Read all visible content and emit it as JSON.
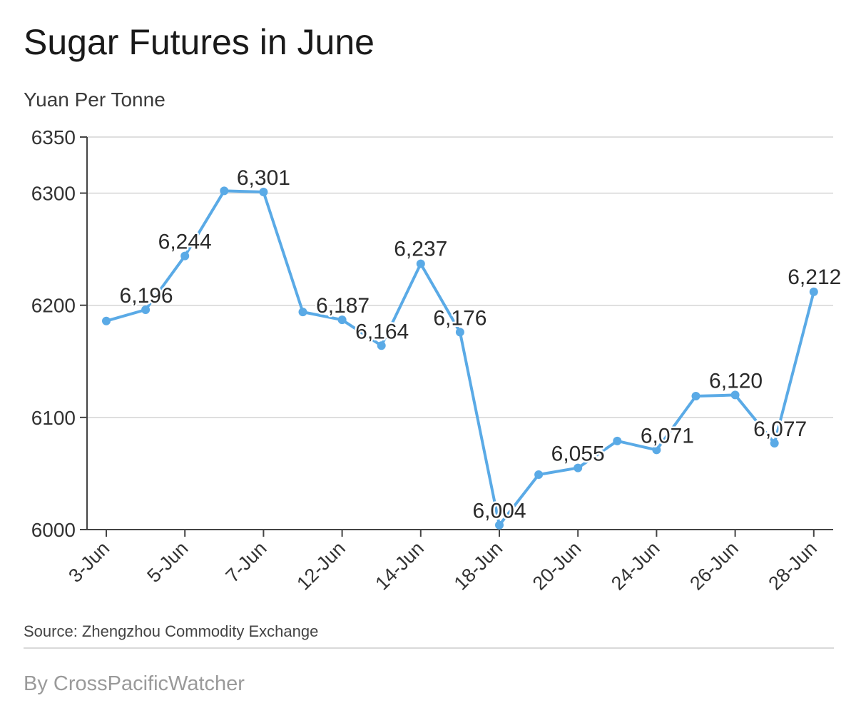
{
  "title": "Sugar Futures in June",
  "subtitle": "Yuan Per Tonne",
  "source": "Source: Zhengzhou Commodity Exchange",
  "byline": "By CrossPacificWatcher",
  "colors": {
    "line": "#5aaae6",
    "grid": "#d4d4d4",
    "axis": "#444444"
  },
  "chart_data": {
    "type": "line",
    "title": "Sugar Futures in June",
    "ylabel": "Yuan Per Tonne",
    "xlabel": "",
    "ylim": [
      6000,
      6350
    ],
    "yticks": [
      6000,
      6100,
      6200,
      6300,
      6350
    ],
    "grid": true,
    "xtick_labels": [
      "3-Jun",
      "5-Jun",
      "7-Jun",
      "12-Jun",
      "14-Jun",
      "18-Jun",
      "20-Jun",
      "24-Jun",
      "26-Jun",
      "28-Jun"
    ],
    "points": [
      {
        "x": "3-Jun",
        "y": 6186,
        "label": ""
      },
      {
        "x": "4-Jun",
        "y": 6196,
        "label": "6,196"
      },
      {
        "x": "5-Jun",
        "y": 6244,
        "label": "6,244"
      },
      {
        "x": "6-Jun",
        "y": 6302,
        "label": ""
      },
      {
        "x": "7-Jun",
        "y": 6301,
        "label": "6,301"
      },
      {
        "x": "11-Jun",
        "y": 6194,
        "label": ""
      },
      {
        "x": "12-Jun",
        "y": 6187,
        "label": "6,187"
      },
      {
        "x": "13-Jun",
        "y": 6164,
        "label": "6,164"
      },
      {
        "x": "14-Jun",
        "y": 6237,
        "label": "6,237"
      },
      {
        "x": "17-Jun",
        "y": 6176,
        "label": "6,176"
      },
      {
        "x": "18-Jun",
        "y": 6004,
        "label": "6,004"
      },
      {
        "x": "19-Jun",
        "y": 6049,
        "label": ""
      },
      {
        "x": "20-Jun",
        "y": 6055,
        "label": "6,055"
      },
      {
        "x": "21-Jun",
        "y": 6079,
        "label": ""
      },
      {
        "x": "24-Jun",
        "y": 6071,
        "label": "6,071"
      },
      {
        "x": "25-Jun",
        "y": 6119,
        "label": ""
      },
      {
        "x": "26-Jun",
        "y": 6120,
        "label": "6,120"
      },
      {
        "x": "27-Jun",
        "y": 6077,
        "label": "6,077"
      },
      {
        "x": "28-Jun",
        "y": 6212,
        "label": "6,212"
      }
    ]
  }
}
